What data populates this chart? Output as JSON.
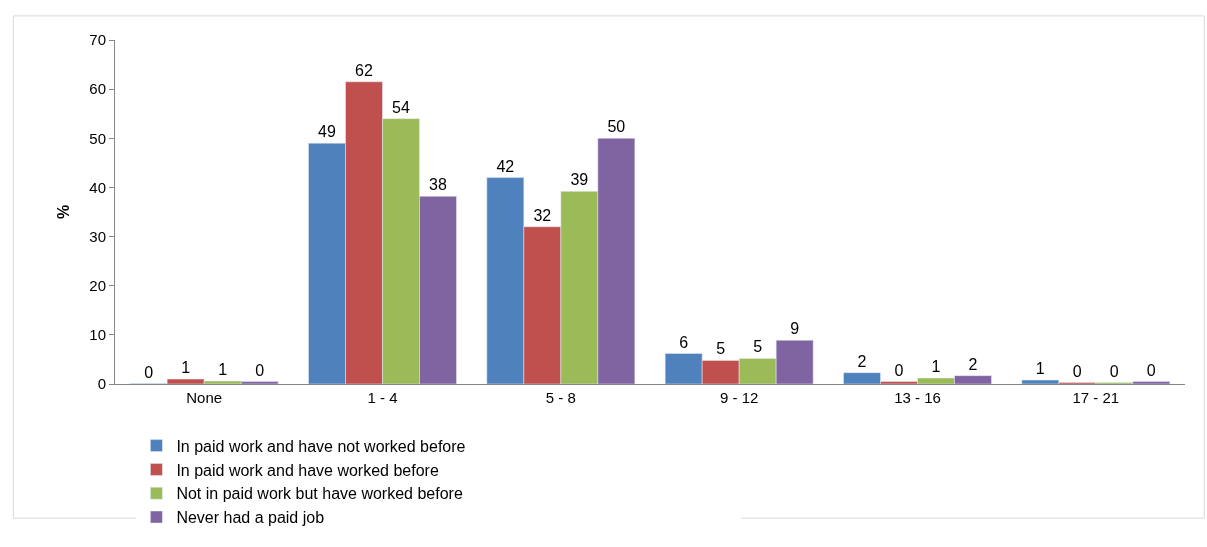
{
  "chart_data": {
    "type": "bar",
    "ylabel": "%",
    "categories": [
      "None",
      "1 - 4",
      "5 - 8",
      "9 - 12",
      "13 - 16",
      "17 - 21"
    ],
    "series": [
      {
        "name": "In paid work and have not worked before",
        "color": "#4f81bd",
        "values": [
          0.1,
          49,
          42,
          6.2,
          2.3,
          0.8
        ],
        "value_labels": [
          "0",
          "49",
          "42",
          "6",
          "2",
          "1"
        ]
      },
      {
        "name": "In paid work and have worked before",
        "color": "#c0504d",
        "values": [
          1,
          61.5,
          32,
          4.8,
          0.5,
          0.3
        ],
        "value_labels": [
          "1",
          "62",
          "32",
          "5",
          "0",
          "0"
        ]
      },
      {
        "name": "Not in paid work but have worked before",
        "color": "#9bbb59",
        "values": [
          0.6,
          54,
          39.2,
          5.2,
          1.2,
          0.3
        ],
        "value_labels": [
          "1",
          "54",
          "39",
          "5",
          "1",
          "0"
        ]
      },
      {
        "name": "Never had a paid job",
        "color": "#8064a2",
        "values": [
          0.5,
          38.2,
          50,
          8.9,
          1.7,
          0.5
        ],
        "value_labels": [
          "0",
          "38",
          "50",
          "9",
          "2",
          "0"
        ]
      }
    ],
    "ylim": [
      0,
      70
    ],
    "yticks": [
      0,
      10,
      20,
      30,
      40,
      50,
      60,
      70
    ],
    "grid": false,
    "legend": "bottom"
  }
}
